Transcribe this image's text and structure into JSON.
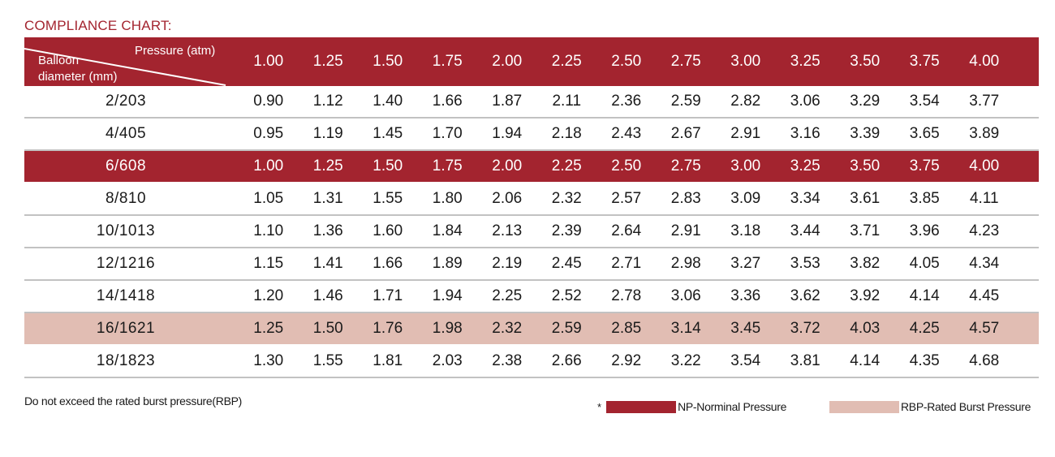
{
  "title": "COMPLIANCE CHART:",
  "header": {
    "pressure_label": "Pressure (atm)",
    "balloon_label_line1": "Balloon",
    "balloon_label_line2": "diameter (mm)",
    "pressures": [
      "1.00",
      "1.25",
      "1.50",
      "1.75",
      "2.00",
      "2.25",
      "2.50",
      "2.75",
      "3.00",
      "3.25",
      "3.50",
      "3.75",
      "4.00"
    ]
  },
  "rows": [
    {
      "diameter": "2/203",
      "type": "normal",
      "values": [
        "0.90",
        "1.12",
        "1.40",
        "1.66",
        "1.87",
        "2.11",
        "2.36",
        "2.59",
        "2.82",
        "3.06",
        "3.29",
        "3.54",
        "3.77"
      ]
    },
    {
      "diameter": "4/405",
      "type": "normal",
      "values": [
        "0.95",
        "1.19",
        "1.45",
        "1.70",
        "1.94",
        "2.18",
        "2.43",
        "2.67",
        "2.91",
        "3.16",
        "3.39",
        "3.65",
        "3.89"
      ]
    },
    {
      "diameter": "6/608",
      "type": "np",
      "values": [
        "1.00",
        "1.25",
        "1.50",
        "1.75",
        "2.00",
        "2.25",
        "2.50",
        "2.75",
        "3.00",
        "3.25",
        "3.50",
        "3.75",
        "4.00"
      ]
    },
    {
      "diameter": "8/810",
      "type": "normal",
      "values": [
        "1.05",
        "1.31",
        "1.55",
        "1.80",
        "2.06",
        "2.32",
        "2.57",
        "2.83",
        "3.09",
        "3.34",
        "3.61",
        "3.85",
        "4.11"
      ]
    },
    {
      "diameter": "10/1013",
      "type": "normal",
      "values": [
        "1.10",
        "1.36",
        "1.60",
        "1.84",
        "2.13",
        "2.39",
        "2.64",
        "2.91",
        "3.18",
        "3.44",
        "3.71",
        "3.96",
        "4.23"
      ]
    },
    {
      "diameter": "12/1216",
      "type": "normal",
      "values": [
        "1.15",
        "1.41",
        "1.66",
        "1.89",
        "2.19",
        "2.45",
        "2.71",
        "2.98",
        "3.27",
        "3.53",
        "3.82",
        "4.05",
        "4.34"
      ]
    },
    {
      "diameter": "14/1418",
      "type": "normal",
      "values": [
        "1.20",
        "1.46",
        "1.71",
        "1.94",
        "2.25",
        "2.52",
        "2.78",
        "3.06",
        "3.36",
        "3.62",
        "3.92",
        "4.14",
        "4.45"
      ]
    },
    {
      "diameter": "16/1621",
      "type": "rbp",
      "values": [
        "1.25",
        "1.50",
        "1.76",
        "1.98",
        "2.32",
        "2.59",
        "2.85",
        "3.14",
        "3.45",
        "3.72",
        "4.03",
        "4.25",
        "4.57"
      ]
    },
    {
      "diameter": "18/1823",
      "type": "normal",
      "values": [
        "1.30",
        "1.55",
        "1.81",
        "2.03",
        "2.38",
        "2.66",
        "2.92",
        "3.22",
        "3.54",
        "3.81",
        "4.14",
        "4.35",
        "4.68"
      ]
    }
  ],
  "footer": {
    "note": "Do not exceed the rated burst pressure(RBP)",
    "legend_star": "*",
    "np_label": "NP-Norminal Pressure",
    "rbp_label": "RBP-Rated Burst Pressure"
  },
  "colors": {
    "np": "#a3242f",
    "rbp": "#e1bdb3",
    "title": "#a3242f"
  }
}
